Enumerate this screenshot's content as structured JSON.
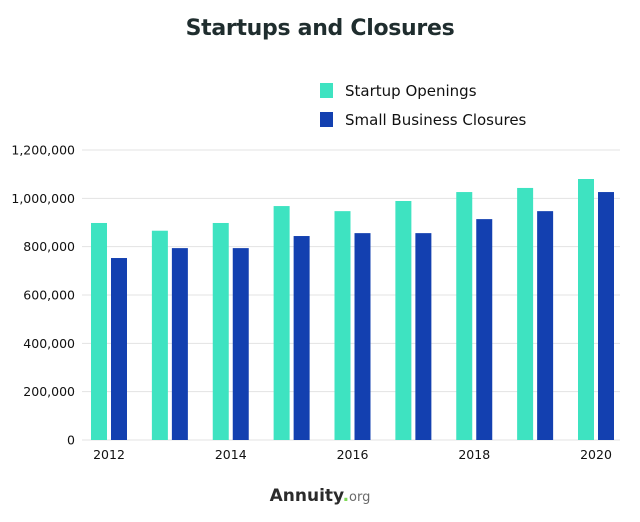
{
  "chart_data": {
    "type": "bar",
    "title": "Startups and Closures",
    "xlabel": "",
    "ylabel": "",
    "categories": [
      "2012",
      "2013",
      "2014",
      "2015",
      "2016",
      "2017",
      "2018",
      "2019",
      "2020"
    ],
    "x_tick_labels": [
      "2012",
      "2014",
      "2016",
      "2018",
      "2020"
    ],
    "series": [
      {
        "name": "Startup Openings",
        "color": "#3ee3c1",
        "values": [
          898000,
          866000,
          898000,
          968000,
          947000,
          989000,
          1026000,
          1043000,
          1080000
        ]
      },
      {
        "name": "Small Business Closures",
        "color": "#1340b0",
        "values": [
          753000,
          794000,
          794000,
          844000,
          856000,
          856000,
          914000,
          947000,
          1026000
        ]
      }
    ],
    "ylim": [
      0,
      1200000
    ],
    "y_ticks": [
      0,
      200000,
      400000,
      600000,
      800000,
      1000000,
      1200000
    ],
    "y_tick_labels": [
      "0",
      "200,000",
      "400,000",
      "600,000",
      "800,000",
      "1,000,000",
      "1,200,000"
    ],
    "grid": true,
    "legend_position": "top-right"
  },
  "branding": {
    "logo_main": "Annuity",
    "logo_dot": ".",
    "logo_suffix": "org"
  }
}
